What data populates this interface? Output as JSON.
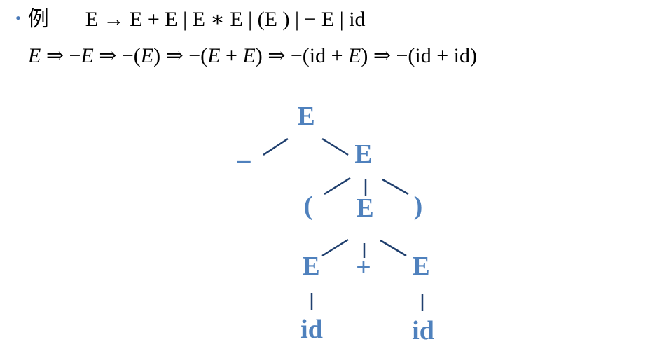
{
  "grammar": {
    "bullet": "•",
    "label": "例",
    "production": "E → E + E | E ∗ E | (E ) | − E | id"
  },
  "derivation": [
    {
      "text": "E",
      "italic": true
    },
    {
      "text": " ⇒ −",
      "italic": false
    },
    {
      "text": "E",
      "italic": true
    },
    {
      "text": " ⇒ −(",
      "italic": false
    },
    {
      "text": "E",
      "italic": true
    },
    {
      "text": ") ⇒ −(",
      "italic": false
    },
    {
      "text": "E",
      "italic": true
    },
    {
      "text": " + ",
      "italic": false
    },
    {
      "text": "E",
      "italic": true
    },
    {
      "text": ") ⇒ −(id + ",
      "italic": false
    },
    {
      "text": "E",
      "italic": true
    },
    {
      "text": ") ⇒ −(id + id)",
      "italic": false
    }
  ],
  "parse_tree": {
    "nodes": [
      {
        "id": "root",
        "label": "E"
      },
      {
        "id": "minus",
        "label": "–"
      },
      {
        "id": "e1",
        "label": "E"
      },
      {
        "id": "lparen",
        "label": "("
      },
      {
        "id": "e2",
        "label": "E"
      },
      {
        "id": "rparen",
        "label": ")"
      },
      {
        "id": "e3",
        "label": "E"
      },
      {
        "id": "plus",
        "label": "+"
      },
      {
        "id": "e4",
        "label": "E"
      },
      {
        "id": "id1",
        "label": "id"
      },
      {
        "id": "id2",
        "label": "id"
      }
    ],
    "edges": [
      [
        "root",
        "minus"
      ],
      [
        "root",
        "e1"
      ],
      [
        "e1",
        "lparen"
      ],
      [
        "e1",
        "e2"
      ],
      [
        "e1",
        "rparen"
      ],
      [
        "e2",
        "e3"
      ],
      [
        "e2",
        "plus"
      ],
      [
        "e2",
        "e4"
      ],
      [
        "e3",
        "id1"
      ],
      [
        "e4",
        "id2"
      ]
    ],
    "node_color": "#4f81bd",
    "edge_color": "#1f3f6e"
  }
}
